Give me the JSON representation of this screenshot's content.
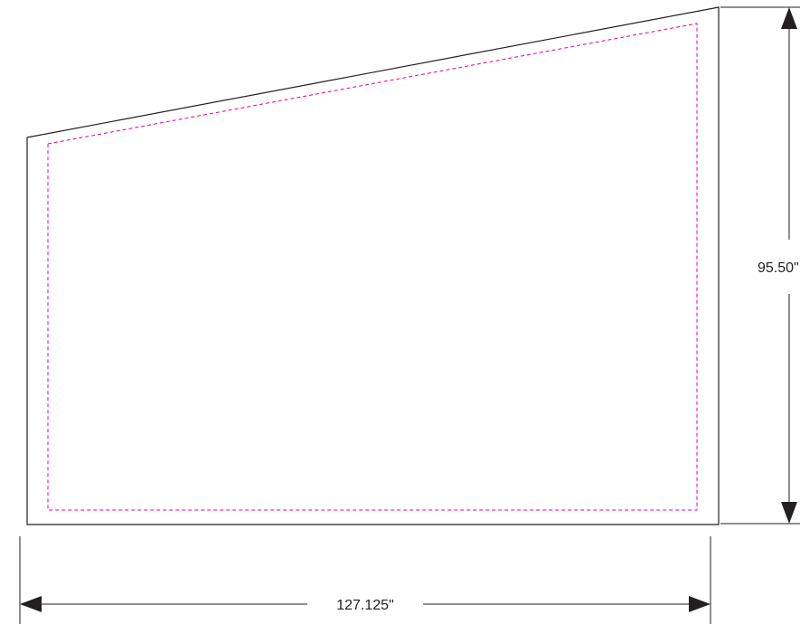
{
  "dimensions": {
    "width_label": "127.125\"",
    "height_label": "95.50\""
  },
  "colors": {
    "outline": "#231f20",
    "safe_line": "#ec008c",
    "text": "#231f20",
    "background": "#ffffff"
  },
  "shape": {
    "type": "trapezoid-panel",
    "top_edge": "sloped"
  }
}
